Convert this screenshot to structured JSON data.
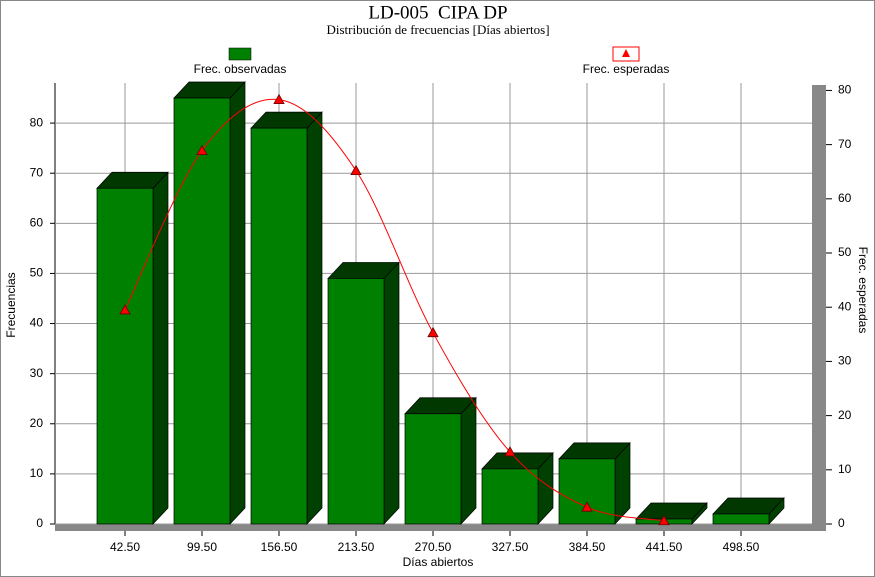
{
  "chart_data": {
    "type": "bar",
    "title": "LD-005  CIPA DP",
    "subtitle": "Distribución de frecuencias [Días abiertos]",
    "x_label": "Días abiertos",
    "y_label": "Frecuencias",
    "y2_label": "Frec. esperadas",
    "categories": [
      "42.50",
      "99.50",
      "156.50",
      "213.50",
      "270.50",
      "327.50",
      "384.50",
      "441.50",
      "498.50"
    ],
    "series": [
      {
        "name": "Frec. observadas",
        "color": "#008000",
        "values": [
          67,
          85,
          79,
          49,
          22,
          11,
          13,
          1,
          2
        ]
      },
      {
        "name": "Frec. esperadas",
        "color": "#ff0000",
        "type": "line",
        "axis": "y2",
        "values": [
          39.5,
          68.9,
          78.3,
          65.2,
          35.3,
          13.3,
          3.1,
          0.6,
          null
        ]
      }
    ],
    "ylim": [
      0,
      88
    ],
    "yticks": [
      0,
      10,
      20,
      30,
      40,
      50,
      60,
      70,
      80
    ],
    "y2lim": [
      0,
      81
    ],
    "y2ticks": [
      0,
      10,
      20,
      30,
      40,
      50,
      60,
      70,
      80
    ],
    "grid": true
  }
}
